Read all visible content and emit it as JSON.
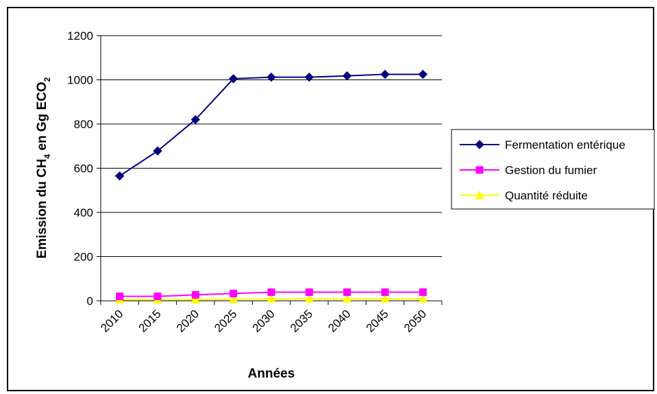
{
  "chart_data": {
    "type": "line",
    "title": "",
    "xlabel": "Années",
    "ylabel": {
      "main": "Emission du CH",
      "sub": "4",
      "rest": " en Gg ECO",
      "sub2": "2"
    },
    "categories": [
      "2010",
      "2015",
      "2020",
      "2025",
      "2030",
      "2035",
      "2040",
      "2045",
      "2050"
    ],
    "ylim": [
      0,
      1200
    ],
    "yticks": [
      0,
      200,
      400,
      600,
      800,
      1000,
      1200
    ],
    "grid": true,
    "legend_position": "right",
    "series": [
      {
        "name": "Fermentation entérique",
        "marker": "diamond",
        "color": "#000080",
        "values": [
          565,
          678,
          820,
          1005,
          1012,
          1012,
          1018,
          1025,
          1025
        ]
      },
      {
        "name": "Gestion du fumier",
        "marker": "square",
        "color": "#FF00FF",
        "values": [
          20,
          20,
          27,
          33,
          39,
          39,
          39,
          39,
          39
        ]
      },
      {
        "name": "Quantité réduite",
        "marker": "triangle",
        "color": "#FFFF00",
        "values": [
          5,
          5,
          5,
          7,
          9,
          9,
          9,
          9,
          9
        ]
      }
    ]
  }
}
